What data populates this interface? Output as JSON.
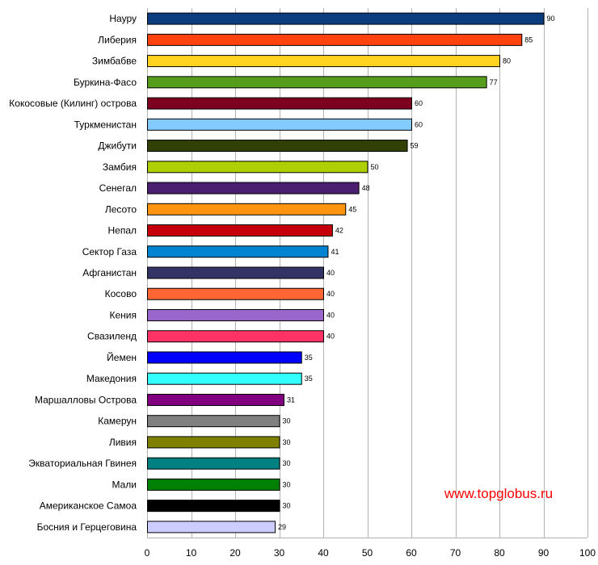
{
  "chart_data": {
    "type": "bar",
    "orientation": "horizontal",
    "categories": [
      "Науру",
      "Либерия",
      "Зимбабве",
      "Буркина-Фасо",
      "Кокосовые (Килинг) острова",
      "Туркменистан",
      "Джибути",
      "Замбия",
      "Сенегал",
      "Лесото",
      "Непал",
      "Сектор Газа",
      "Афганистан",
      "Косово",
      "Кения",
      "Свазиленд",
      "Йемен",
      "Македония",
      "Маршалловы Острова",
      "Камерун",
      "Ливия",
      "Экваториальная Гвинея",
      "Мали",
      "Американское Самоа",
      "Босния и Герцеговина"
    ],
    "values": [
      90,
      85,
      80,
      77,
      60,
      60,
      59,
      50,
      48,
      45,
      42,
      41,
      40,
      40,
      40,
      40,
      35,
      35,
      31,
      30,
      30,
      30,
      30,
      30,
      29
    ],
    "colors": [
      "#0b3d7e",
      "#ff420e",
      "#ffd320",
      "#579d1c",
      "#7e0021",
      "#83caff",
      "#314004",
      "#aecf00",
      "#4b1f6f",
      "#ff950e",
      "#c5000b",
      "#0084d1",
      "#333366",
      "#ff6633",
      "#9966cc",
      "#ff3366",
      "#0000ff",
      "#33ffff",
      "#800080",
      "#808080",
      "#808000",
      "#008080",
      "#008000",
      "#000000",
      "#ccccff"
    ],
    "xlim": [
      0,
      100
    ],
    "xticks": [
      0,
      10,
      20,
      30,
      40,
      50,
      60,
      70,
      80,
      90,
      100
    ],
    "grid": true,
    "title": "",
    "xlabel": "",
    "ylabel": ""
  },
  "watermark": "www.topglobus.ru"
}
